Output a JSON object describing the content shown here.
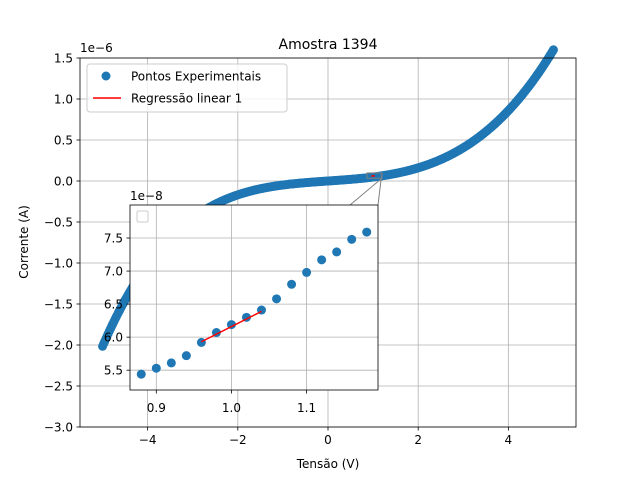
{
  "chart_data": {
    "type": "scatter",
    "title": "Amostra 1394",
    "xlabel": "Tensão (V)",
    "ylabel": "Corrente (A)",
    "y_scale_label": "1e−6",
    "xlim": [
      -5.5,
      5.5
    ],
    "ylim": [
      -3e-06,
      1.5e-06
    ],
    "x_ticks": [
      -4,
      -2,
      0,
      2,
      4
    ],
    "x_tick_labels": [
      "−4",
      "−2",
      "0",
      "2",
      "4"
    ],
    "y_ticks": [
      -3e-06,
      -2.5e-06,
      -2e-06,
      -1.5e-06,
      -1e-06,
      -5e-07,
      0,
      5e-07,
      1e-06,
      1.5e-06
    ],
    "y_tick_labels": [
      "−3.0",
      "−2.5",
      "−2.0",
      "−1.5",
      "−1.0",
      "−0.5",
      "0.0",
      "0.5",
      "1.0",
      "1.5"
    ],
    "grid": true,
    "legend_position": "top-left",
    "series": [
      {
        "name": "Pontos Experimentais",
        "kind": "scatter",
        "color": "#1f77b4",
        "model": {
          "x_min": -5.0,
          "x_max": 5.0,
          "step": 0.025,
          "a": 3.8e-08,
          "b": 1e-08,
          "c": 0.00235,
          "k": 1.35
        }
      },
      {
        "name": "Regressão linear 1",
        "kind": "line",
        "color": "#ff0000",
        "x": [
          0.96,
          1.04
        ],
        "y": [
          5.93e-08,
          6.39e-08
        ]
      }
    ],
    "inset": {
      "xlim": [
        0.865,
        1.195
      ],
      "ylim": [
        5.2e-08,
        8e-08
      ],
      "x_ticks": [
        0.9,
        1.0,
        1.1
      ],
      "x_tick_labels": [
        "0.9",
        "1.0",
        "1.1"
      ],
      "y_ticks": [
        5.5e-08,
        6e-08,
        6.5e-08,
        7e-08,
        7.5e-08
      ],
      "y_tick_labels": [
        "5.5",
        "6.0",
        "6.5",
        "7.0",
        "7.5"
      ],
      "y_scale_label": "1e−8",
      "grid": true,
      "points": [
        {
          "x": 0.88,
          "y": 5.44e-08
        },
        {
          "x": 0.9,
          "y": 5.53e-08
        },
        {
          "x": 0.92,
          "y": 5.61e-08
        },
        {
          "x": 0.94,
          "y": 5.72e-08
        },
        {
          "x": 0.96,
          "y": 5.92e-08
        },
        {
          "x": 0.98,
          "y": 6.07e-08
        },
        {
          "x": 1.0,
          "y": 6.19e-08
        },
        {
          "x": 1.02,
          "y": 6.3e-08
        },
        {
          "x": 1.04,
          "y": 6.41e-08
        },
        {
          "x": 1.06,
          "y": 6.58e-08
        },
        {
          "x": 1.08,
          "y": 6.8e-08
        },
        {
          "x": 1.1,
          "y": 6.98e-08
        },
        {
          "x": 1.12,
          "y": 7.17e-08
        },
        {
          "x": 1.14,
          "y": 7.29e-08
        },
        {
          "x": 1.16,
          "y": 7.48e-08
        },
        {
          "x": 1.18,
          "y": 7.59e-08
        }
      ],
      "regression": {
        "x": [
          0.96,
          1.04
        ],
        "y": [
          5.93e-08,
          6.39e-08
        ]
      },
      "zoom_region": {
        "x": [
          0.865,
          1.195
        ],
        "y": [
          5.2e-08,
          8e-08
        ]
      }
    }
  }
}
